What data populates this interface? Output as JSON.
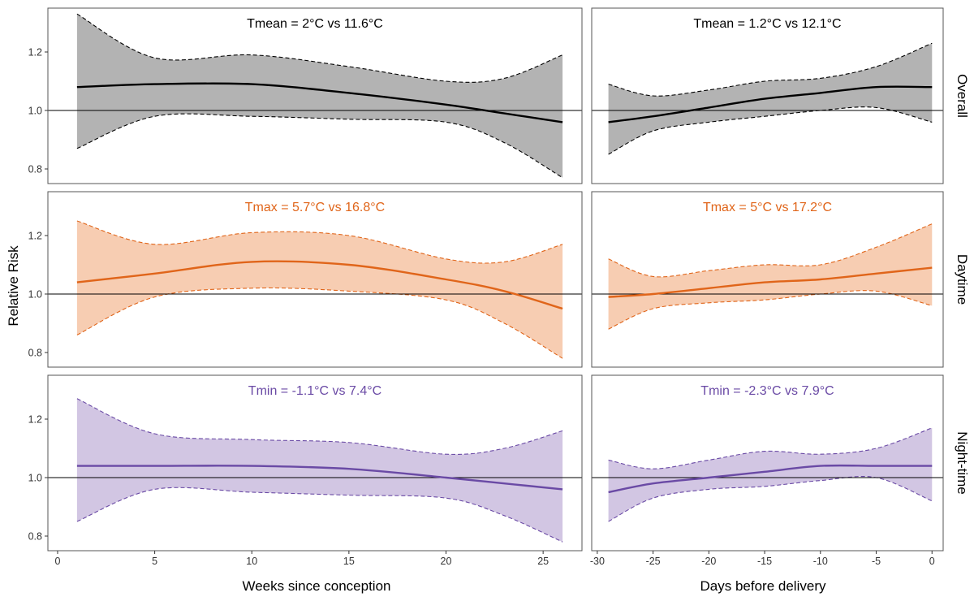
{
  "figure": {
    "ylabel": "Relative Risk",
    "xlabel_left": "Weeks since conception",
    "xlabel_right": "Days before delivery",
    "row_labels": [
      "Overall",
      "Daytime",
      "Night-time"
    ]
  },
  "colors": {
    "overall_line": "#000000",
    "overall_fill": "#b3b3b3",
    "daytime_line": "#e0651a",
    "daytime_fill": "#f7cdb2",
    "night_line": "#6a4aa5",
    "night_fill": "#d2c6e3",
    "frame": "#555555"
  },
  "chart_data": {
    "type": "line",
    "facets": "3 rows x 2 columns, line with shaded confidence band, dashed band bounds, horizontal reference line at 1.0",
    "ylim": [
      0.75,
      1.35
    ],
    "yticks": [
      "0.8",
      "1.0",
      "1.2"
    ],
    "reference_y": 1.0,
    "columns": [
      {
        "xlabel": "Weeks since conception",
        "xlim": [
          -0.5,
          27
        ],
        "xticks": [
          "0",
          "5",
          "10",
          "15",
          "20",
          "25"
        ]
      },
      {
        "xlabel": "Days before delivery",
        "xlim": [
          -30.5,
          1
        ],
        "xticks": [
          "-30",
          "-25",
          "-20",
          "-15",
          "-10",
          "-5",
          "0"
        ]
      }
    ],
    "panels": [
      {
        "row": "Overall",
        "col": 0,
        "label": "Tmean = 2°C vs 11.6°C",
        "color_key": "overall",
        "x": [
          1,
          5,
          10,
          15,
          20,
          23,
          26
        ],
        "y": [
          1.08,
          1.09,
          1.09,
          1.06,
          1.02,
          0.99,
          0.96
        ],
        "lower": [
          0.87,
          0.98,
          0.98,
          0.97,
          0.96,
          0.89,
          0.77
        ],
        "upper": [
          1.33,
          1.18,
          1.19,
          1.15,
          1.1,
          1.11,
          1.19
        ]
      },
      {
        "row": "Overall",
        "col": 1,
        "label": "Tmean = 1.2°C vs 12.1°C",
        "color_key": "overall",
        "x": [
          -29,
          -25,
          -20,
          -15,
          -10,
          -5,
          0
        ],
        "y": [
          0.96,
          0.98,
          1.01,
          1.04,
          1.06,
          1.08,
          1.08
        ],
        "lower": [
          0.85,
          0.93,
          0.96,
          0.98,
          1.0,
          1.01,
          0.96
        ],
        "upper": [
          1.09,
          1.05,
          1.07,
          1.1,
          1.11,
          1.15,
          1.23
        ]
      },
      {
        "row": "Daytime",
        "col": 0,
        "label": "Tmax = 5.7°C vs 16.8°C",
        "color_key": "daytime",
        "x": [
          1,
          5,
          10,
          15,
          20,
          23,
          26
        ],
        "y": [
          1.04,
          1.07,
          1.11,
          1.1,
          1.05,
          1.01,
          0.95
        ],
        "lower": [
          0.86,
          0.99,
          1.02,
          1.01,
          0.98,
          0.9,
          0.78
        ],
        "upper": [
          1.25,
          1.17,
          1.21,
          1.2,
          1.12,
          1.11,
          1.17
        ]
      },
      {
        "row": "Daytime",
        "col": 1,
        "label": "Tmax = 5°C vs 17.2°C",
        "color_key": "daytime",
        "x": [
          -29,
          -25,
          -20,
          -15,
          -10,
          -5,
          0
        ],
        "y": [
          0.99,
          1.0,
          1.02,
          1.04,
          1.05,
          1.07,
          1.09
        ],
        "lower": [
          0.88,
          0.95,
          0.97,
          0.98,
          1.0,
          1.01,
          0.96
        ],
        "upper": [
          1.12,
          1.06,
          1.08,
          1.1,
          1.1,
          1.16,
          1.24
        ]
      },
      {
        "row": "Night-time",
        "col": 0,
        "label": "Tmin = -1.1°C vs 7.4°C",
        "color_key": "night",
        "x": [
          1,
          5,
          10,
          15,
          20,
          23,
          26
        ],
        "y": [
          1.04,
          1.04,
          1.04,
          1.03,
          1.0,
          0.98,
          0.96
        ],
        "lower": [
          0.85,
          0.96,
          0.95,
          0.94,
          0.93,
          0.87,
          0.78
        ],
        "upper": [
          1.27,
          1.15,
          1.13,
          1.12,
          1.08,
          1.1,
          1.16
        ]
      },
      {
        "row": "Night-time",
        "col": 1,
        "label": "Tmin = -2.3°C vs 7.9°C",
        "color_key": "night",
        "x": [
          -29,
          -25,
          -20,
          -15,
          -10,
          -5,
          0
        ],
        "y": [
          0.95,
          0.98,
          1.0,
          1.02,
          1.04,
          1.04,
          1.04
        ],
        "lower": [
          0.85,
          0.93,
          0.96,
          0.97,
          0.99,
          1.0,
          0.92
        ],
        "upper": [
          1.06,
          1.03,
          1.06,
          1.09,
          1.08,
          1.1,
          1.17
        ]
      }
    ]
  }
}
